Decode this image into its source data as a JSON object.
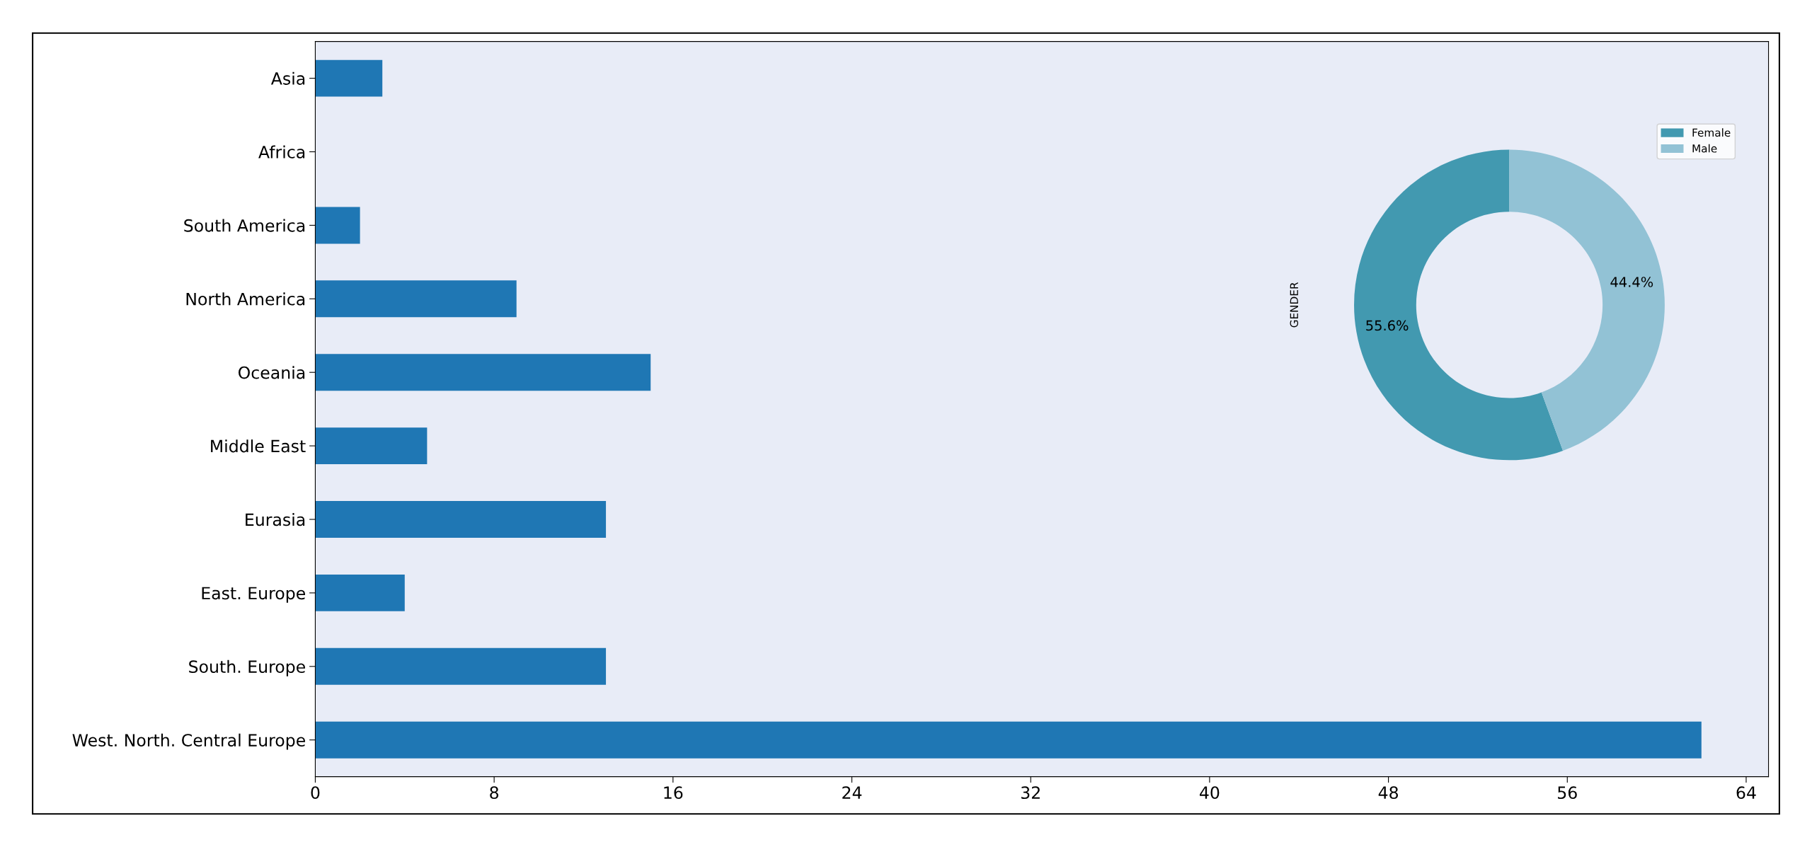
{
  "chart_data": [
    {
      "type": "bar",
      "orientation": "horizontal",
      "categories": [
        "Asia",
        "Africa",
        "South America",
        "North America",
        "Oceania",
        "Middle East",
        "Eurasia",
        "East. Europe",
        "South. Europe",
        "West. North. Central Europe"
      ],
      "values": [
        3,
        0,
        2,
        9,
        15,
        5,
        13,
        4,
        13,
        62
      ],
      "color": "#1f77b4",
      "xlim": [
        0,
        65
      ],
      "xticks": [
        0,
        8,
        16,
        24,
        32,
        40,
        48,
        56,
        64
      ],
      "grid": false
    },
    {
      "type": "donut",
      "ylabel": "GENDER",
      "categories": [
        "Female",
        "Male"
      ],
      "values": [
        55.6,
        44.4
      ],
      "colors": [
        "#4299b0",
        "#92c2d5"
      ],
      "value_labels": [
        "55.6%",
        "44.4%"
      ],
      "legend": "top right"
    }
  ]
}
